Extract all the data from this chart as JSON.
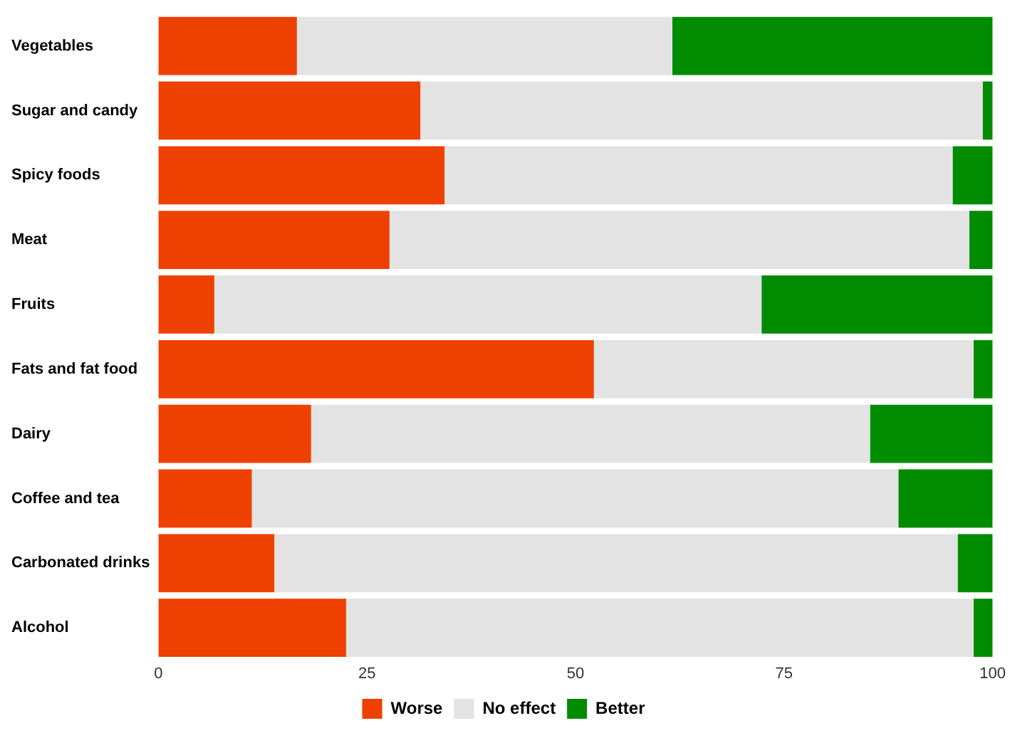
{
  "chart_data": {
    "type": "bar",
    "orientation": "horizontal",
    "stacked": true,
    "categories": [
      "Vegetables",
      "Sugar and candy",
      "Spicy foods",
      "Meat",
      "Fruits",
      "Fats and fat food",
      "Dairy",
      "Coffee and tea",
      "Carbonated drinks",
      "Alcohol"
    ],
    "series": [
      {
        "name": "Worse",
        "color": "#ee4000",
        "values": [
          16.6,
          31.4,
          34.3,
          27.7,
          6.7,
          52.2,
          18.3,
          11.2,
          13.9,
          22.5
        ]
      },
      {
        "name": "No effect",
        "color": "#e3e3e3",
        "values": [
          45,
          67.4,
          60.9,
          69.5,
          65.6,
          45.5,
          67,
          77.5,
          81.9,
          75.2
        ]
      },
      {
        "name": "Better",
        "color": "#008b00",
        "values": [
          38.4,
          1.2,
          4.8,
          2.8,
          27.7,
          2.3,
          14.7,
          11.3,
          4.2,
          2.3
        ]
      }
    ],
    "xlim": [
      0,
      100
    ],
    "xticks": [
      0,
      25,
      50,
      75,
      100
    ],
    "grid": false,
    "legend": "bottom"
  }
}
